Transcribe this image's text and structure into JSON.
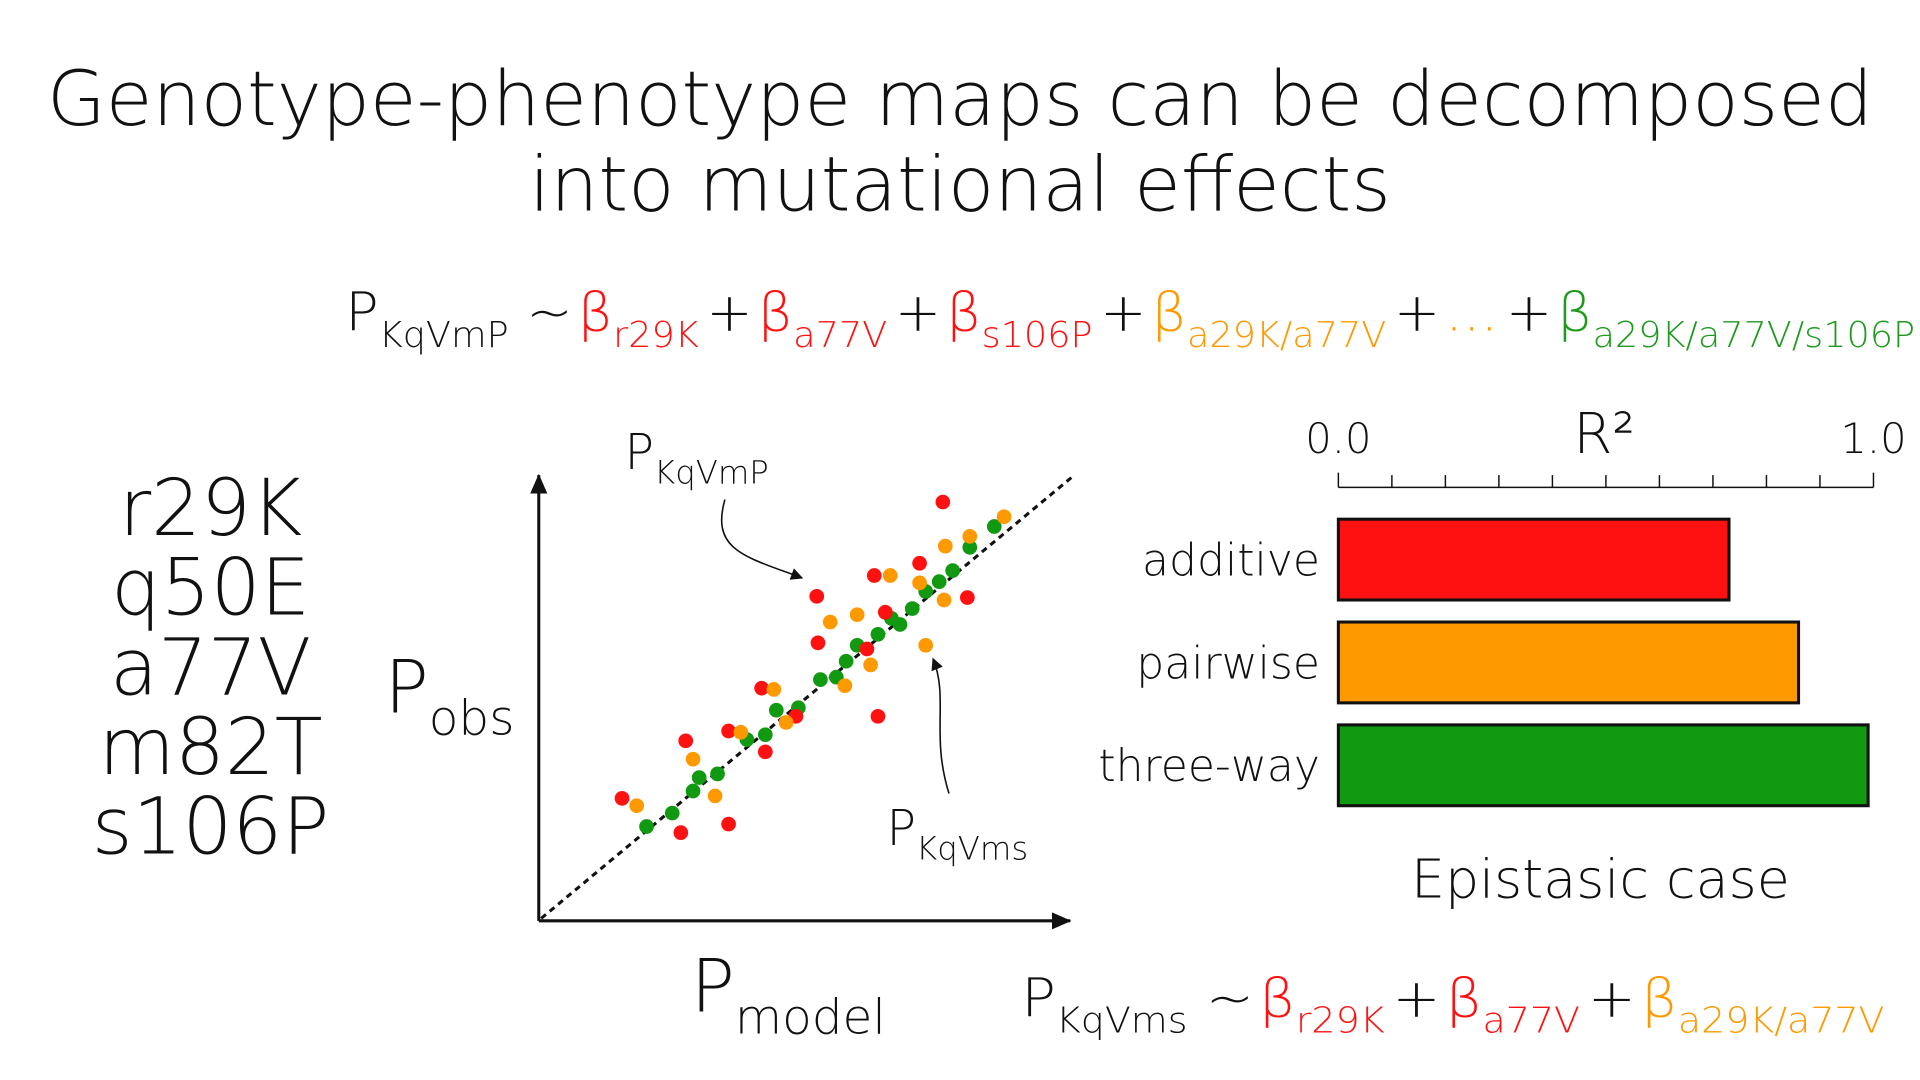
{
  "title": {
    "line1": "Genotype-phenotype maps can be decomposed",
    "line2": "into mutational effects"
  },
  "equation_full": {
    "lhs": {
      "symbol": "P",
      "subscript": "KqVmP"
    },
    "relation": "~",
    "operator": "+",
    "terms": [
      {
        "symbol": "β",
        "subscript": "r29K",
        "color": "#ff1111"
      },
      {
        "symbol": "β",
        "subscript": "a77V",
        "color": "#ff1111"
      },
      {
        "symbol": "β",
        "subscript": "s106P",
        "color": "#ff1111"
      },
      {
        "symbol": "β",
        "subscript": "a29K/a77V",
        "color": "#ff9900"
      },
      {
        "symbol": "...",
        "color": "#ff9900"
      },
      {
        "symbol": "β",
        "subscript": "a29K/a77V/s106P",
        "color": "#1f9a1f"
      }
    ]
  },
  "mutations": [
    "r29K",
    "q50E",
    "a77V",
    "m82T",
    "s106P"
  ],
  "scatter": {
    "y_label": {
      "symbol": "P",
      "subscript": "obs"
    },
    "x_label": {
      "symbol": "P",
      "subscript": "model"
    },
    "annotations": [
      {
        "symbol": "P",
        "subscript": "KqVmP"
      },
      {
        "symbol": "P",
        "subscript": "KqVms"
      }
    ]
  },
  "chart_data": {
    "type": "bar",
    "orientation": "horizontal",
    "title": "R²",
    "categories": [
      "additive",
      "pairwise",
      "three-way"
    ],
    "values": [
      0.73,
      0.86,
      0.99
    ],
    "colors": [
      "#ff1111",
      "#ff9900",
      "#119911"
    ],
    "xlim": [
      0,
      1
    ],
    "xticks": [
      {
        "value": 0,
        "label": "0.0"
      },
      {
        "value": 1,
        "label": "1.0"
      }
    ],
    "minor_xticks": [
      0.1,
      0.2,
      0.3,
      0.4,
      0.5,
      0.6,
      0.7,
      0.8,
      0.9
    ],
    "caption": "Epistasic case"
  },
  "equation_reduced": {
    "lhs": {
      "symbol": "P",
      "subscript": "KqVms"
    },
    "relation": "~",
    "operator": "+",
    "terms": [
      {
        "symbol": "β",
        "subscript": "r29K",
        "color": "#ff1111"
      },
      {
        "symbol": "β",
        "subscript": "a77V",
        "color": "#ff1111"
      },
      {
        "symbol": "β",
        "subscript": "a29K/a77V",
        "color": "#ff9900"
      }
    ]
  }
}
